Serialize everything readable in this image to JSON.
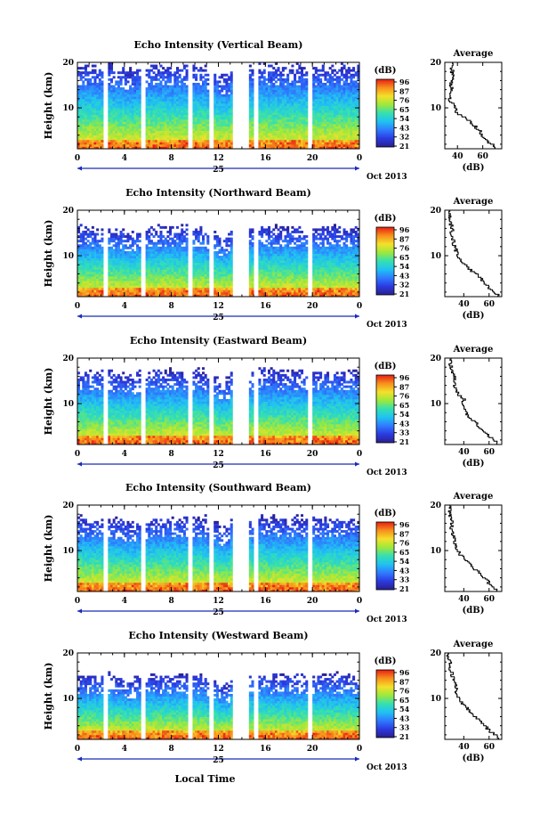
{
  "x_axis": {
    "ticks": [
      "0",
      "4",
      "8",
      "12",
      "16",
      "20",
      "0"
    ],
    "date_label": "25",
    "month_label": "Oct 2013",
    "title": "Local Time"
  },
  "y_axis": {
    "label": "Height (km)",
    "ticks": [
      "20",
      "10"
    ]
  },
  "colorbar": {
    "title": "(dB)",
    "tick_labels": [
      [
        "96",
        "87",
        "76",
        "65",
        "54",
        "43",
        "32",
        "21"
      ],
      [
        "96",
        "87",
        "76",
        "65",
        "54",
        "43",
        "32",
        "21"
      ],
      [
        "96",
        "87",
        "76",
        "65",
        "54",
        "43",
        "33",
        "21"
      ],
      [
        "96",
        "87",
        "76",
        "65",
        "54",
        "43",
        "33",
        "21"
      ],
      [
        "96",
        "87",
        "76",
        "65",
        "54",
        "43",
        "33",
        "21"
      ]
    ],
    "colors": [
      "#2a1f8c",
      "#2b3ae0",
      "#2f7bff",
      "#20c2f2",
      "#35e0b0",
      "#9ee83c",
      "#f5e02a",
      "#f7901c",
      "#e81e14"
    ]
  },
  "profile": {
    "title": "Average",
    "xlabel": "(dB)",
    "y_ticks": [
      "20",
      "10"
    ]
  },
  "chart_data": [
    {
      "type": "heatmap",
      "title": "Echo Intensity (Vertical Beam)",
      "xlabel": "Local Time",
      "ylabel": "Height (km)",
      "xlim": [
        0,
        24
      ],
      "ylim": [
        1,
        20
      ],
      "zlim": [
        21,
        96
      ],
      "colorbar_ticks": [
        96,
        87,
        76,
        65,
        54,
        43,
        32,
        21
      ],
      "data_gaps_hours": [
        [
          2.2,
          2.5
        ],
        [
          5.4,
          5.7
        ],
        [
          9.4,
          9.7
        ],
        [
          11.2,
          11.5
        ],
        [
          13.3,
          14.6
        ],
        [
          15.1,
          15.4
        ],
        [
          19.7,
          20.0
        ]
      ],
      "data_top_km": [
        19,
        19,
        19,
        18.5,
        18,
        18.5,
        19,
        19,
        19,
        19,
        19,
        18,
        17,
        19,
        19,
        19.5,
        19,
        19,
        19,
        19,
        19,
        19,
        19,
        19
      ],
      "profile": {
        "x_ticks": [
          "40",
          "60"
        ],
        "xlim": [
          30,
          75
        ],
        "heights_km": [
          1,
          2,
          3,
          4,
          5,
          6,
          7,
          8,
          9,
          10,
          11,
          12,
          13,
          14,
          15,
          16,
          17,
          18,
          19,
          20
        ],
        "values_db": [
          72,
          68,
          62,
          60,
          58,
          54,
          50,
          46,
          40,
          38,
          36,
          34,
          35,
          36,
          34,
          35,
          38,
          36,
          35,
          36
        ]
      }
    },
    {
      "type": "heatmap",
      "title": "Echo Intensity (Northward Beam)",
      "xlabel": "Local Time",
      "ylabel": "Height (km)",
      "xlim": [
        0,
        24
      ],
      "ylim": [
        1,
        20
      ],
      "zlim": [
        21,
        96
      ],
      "colorbar_ticks": [
        96,
        87,
        76,
        65,
        54,
        43,
        32,
        21
      ],
      "data_gaps_hours": [
        [
          2.2,
          2.5
        ],
        [
          5.4,
          5.7
        ],
        [
          9.4,
          9.7
        ],
        [
          11.2,
          11.5
        ],
        [
          13.3,
          14.6
        ],
        [
          15.1,
          15.4
        ],
        [
          19.7,
          20.0
        ]
      ],
      "data_top_km": [
        16,
        16,
        16,
        15.5,
        15,
        15.5,
        16,
        16,
        16,
        16,
        16,
        15,
        14,
        16,
        16,
        16.5,
        16,
        16,
        16,
        16,
        16,
        16,
        16,
        16
      ],
      "profile": {
        "x_ticks": [
          "40",
          "60"
        ],
        "xlim": [
          25,
          70
        ],
        "heights_km": [
          1,
          2,
          3,
          4,
          5,
          6,
          7,
          8,
          9,
          10,
          11,
          12,
          13,
          14,
          15,
          16,
          17,
          18,
          19,
          20
        ],
        "values_db": [
          68,
          65,
          60,
          57,
          54,
          50,
          45,
          42,
          38,
          36,
          34,
          33,
          32,
          31,
          30,
          31,
          30,
          30,
          29,
          29
        ]
      }
    },
    {
      "type": "heatmap",
      "title": "Echo Intensity (Eastward Beam)",
      "xlabel": "Local Time",
      "ylabel": "Height (km)",
      "xlim": [
        0,
        24
      ],
      "ylim": [
        1,
        20
      ],
      "zlim": [
        21,
        96
      ],
      "colorbar_ticks": [
        96,
        87,
        76,
        65,
        54,
        43,
        33,
        21
      ],
      "data_gaps_hours": [
        [
          2.2,
          2.5
        ],
        [
          5.4,
          5.7
        ],
        [
          9.4,
          9.7
        ],
        [
          11.2,
          11.5
        ],
        [
          13.3,
          14.6
        ],
        [
          15.1,
          15.4
        ],
        [
          19.7,
          20.0
        ]
      ],
      "data_top_km": [
        17,
        17,
        17,
        16.5,
        16,
        16.5,
        17,
        17,
        17,
        17,
        17,
        16,
        15,
        17,
        17,
        17.5,
        17,
        17,
        17,
        17,
        17,
        17,
        17,
        17
      ],
      "profile": {
        "x_ticks": [
          "40",
          "60"
        ],
        "xlim": [
          25,
          70
        ],
        "heights_km": [
          1,
          2,
          3,
          4,
          5,
          6,
          7,
          8,
          9,
          10,
          11,
          12,
          13,
          14,
          15,
          16,
          17,
          18,
          19,
          20
        ],
        "values_db": [
          68,
          65,
          60,
          56,
          52,
          49,
          44,
          42,
          40,
          38,
          41,
          36,
          35,
          33,
          31,
          34,
          31,
          30,
          29,
          30
        ]
      }
    },
    {
      "type": "heatmap",
      "title": "Echo Intensity (Southward Beam)",
      "xlabel": "Local Time",
      "ylabel": "Height (km)",
      "xlim": [
        0,
        24
      ],
      "ylim": [
        1,
        20
      ],
      "zlim": [
        21,
        96
      ],
      "colorbar_ticks": [
        96,
        87,
        76,
        65,
        54,
        43,
        33,
        21
      ],
      "data_gaps_hours": [
        [
          2.2,
          2.5
        ],
        [
          5.4,
          5.7
        ],
        [
          9.4,
          9.7
        ],
        [
          11.2,
          11.5
        ],
        [
          13.3,
          14.6
        ],
        [
          15.1,
          15.4
        ],
        [
          19.7,
          20.0
        ]
      ],
      "data_top_km": [
        17,
        17,
        17,
        16.5,
        16,
        16.5,
        17,
        17,
        17,
        17,
        17,
        16,
        15,
        17,
        17,
        17.5,
        17,
        17,
        17,
        17,
        17,
        17,
        17,
        17
      ],
      "profile": {
        "x_ticks": [
          "40",
          "60"
        ],
        "xlim": [
          25,
          70
        ],
        "heights_km": [
          1,
          2,
          3,
          4,
          5,
          6,
          7,
          8,
          9,
          10,
          11,
          12,
          13,
          14,
          15,
          16,
          17,
          18,
          19,
          20
        ],
        "values_db": [
          68,
          64,
          60,
          57,
          53,
          49,
          45,
          42,
          38,
          36,
          34,
          33,
          32,
          31,
          30,
          31,
          30,
          29,
          29,
          29
        ]
      }
    },
    {
      "type": "heatmap",
      "title": "Echo Intensity (Westward Beam)",
      "xlabel": "Local Time",
      "ylabel": "Height (km)",
      "xlim": [
        0,
        24
      ],
      "ylim": [
        1,
        20
      ],
      "zlim": [
        21,
        96
      ],
      "colorbar_ticks": [
        96,
        87,
        76,
        65,
        54,
        43,
        33,
        21
      ],
      "data_gaps_hours": [
        [
          2.2,
          2.5
        ],
        [
          5.4,
          5.7
        ],
        [
          9.4,
          9.7
        ],
        [
          11.2,
          11.5
        ],
        [
          13.3,
          14.6
        ],
        [
          15.1,
          15.4
        ],
        [
          19.7,
          20.0
        ]
      ],
      "data_top_km": [
        15,
        15,
        15,
        14.5,
        14,
        14.5,
        15,
        15,
        15,
        15,
        15,
        14,
        13,
        15,
        15,
        15.5,
        15,
        15,
        15,
        15,
        15,
        15,
        15,
        15
      ],
      "profile": {
        "x_ticks": [
          "40",
          "60"
        ],
        "xlim": [
          25,
          70
        ],
        "heights_km": [
          1,
          2,
          3,
          4,
          5,
          6,
          7,
          8,
          9,
          10,
          11,
          12,
          13,
          14,
          15,
          16,
          17,
          18,
          19,
          20
        ],
        "values_db": [
          70,
          66,
          60,
          57,
          53,
          50,
          46,
          43,
          39,
          37,
          35,
          34,
          33,
          32,
          31,
          30,
          29,
          29,
          28,
          28
        ]
      }
    }
  ]
}
